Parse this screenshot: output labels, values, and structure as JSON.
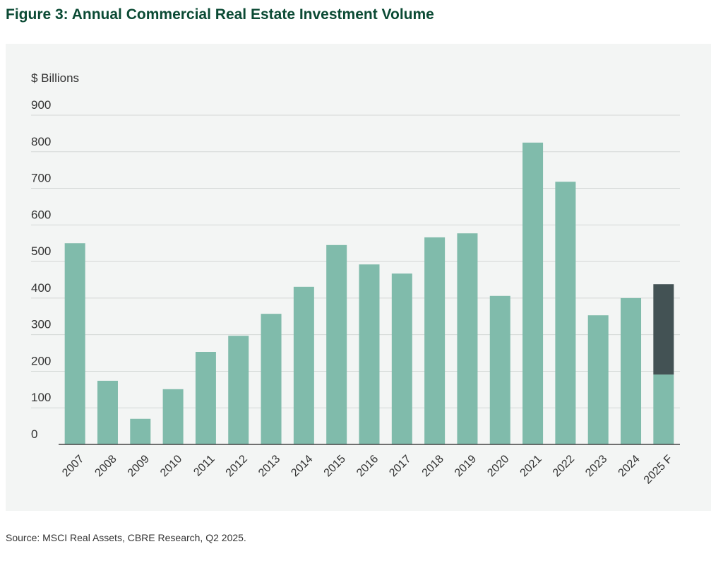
{
  "chart_data": {
    "type": "stacked_bar",
    "title": "Figure 3: Annual Commercial Real Estate Investment Volume",
    "y_label": "$ Billions",
    "source": "Source: MSCI Real Assets, CBRE Research, Q2 2025.",
    "categories": [
      "2007",
      "2008",
      "2009",
      "2010",
      "2011",
      "2012",
      "2013",
      "2014",
      "2015",
      "2016",
      "2017",
      "2018",
      "2019",
      "2020",
      "2021",
      "2022",
      "2023",
      "2024",
      "2025 F"
    ],
    "series": [
      {
        "color": "#80bbab",
        "values": [
          550,
          174,
          70,
          151,
          253,
          297,
          357,
          431,
          545,
          492,
          467,
          566,
          577,
          406,
          825,
          718,
          353,
          400,
          191
        ]
      },
      {
        "color": "#435254",
        "values": [
          null,
          null,
          null,
          null,
          null,
          null,
          null,
          null,
          null,
          null,
          null,
          null,
          null,
          null,
          null,
          null,
          null,
          null,
          247
        ]
      }
    ],
    "ylim": [
      0,
      900
    ],
    "yticks": [
      0,
      100,
      200,
      300,
      400,
      500,
      600,
      700,
      800,
      900
    ],
    "grid": true
  }
}
